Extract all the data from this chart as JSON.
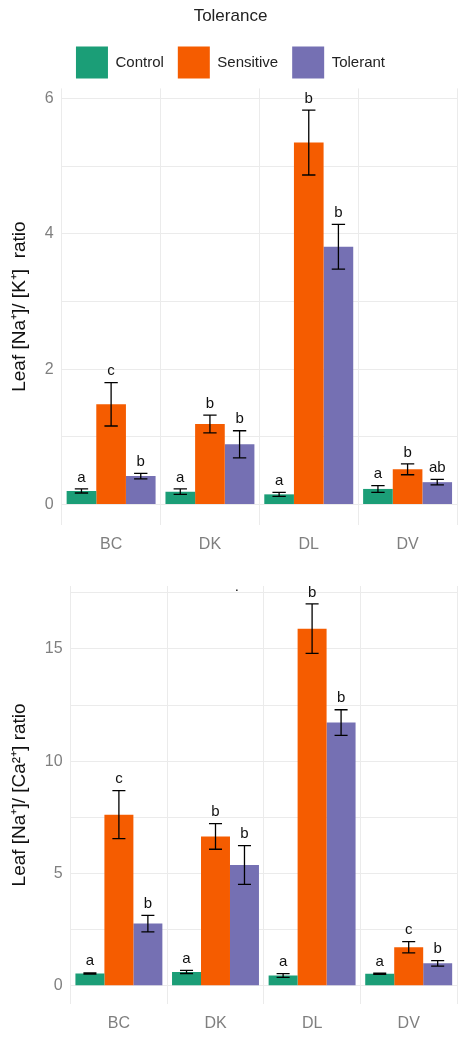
{
  "chart_data": [
    {
      "type": "bar",
      "ylabel": "Leaf [Na⁺]/ [K⁺]  ratio",
      "legend_title": "Tolerance",
      "legend": "top",
      "grid": true,
      "categories": [
        "BC",
        "DK",
        "DL",
        "DV"
      ],
      "ylim": [
        -0.3,
        6.15
      ],
      "yticks": [
        0,
        {
          "value": 1,
          "label": null
        },
        2,
        {
          "value": 3,
          "label": null
        },
        4,
        {
          "value": 5,
          "label": null
        },
        6
      ],
      "series": [
        {
          "name": "Control",
          "color": "#1b9e77",
          "values": [
            0.2,
            0.19,
            0.15,
            0.23
          ],
          "errors": [
            0.03,
            0.04,
            0.03,
            0.05
          ],
          "value_labels": [
            "a",
            "a",
            "a",
            "a"
          ]
        },
        {
          "name": "Sensitive",
          "color": "#f55c00",
          "values": [
            1.48,
            1.19,
            5.35,
            0.52
          ],
          "errors": [
            0.32,
            0.13,
            0.48,
            0.08
          ],
          "value_labels": [
            "c",
            "b",
            "b",
            "b"
          ]
        },
        {
          "name": "Tolerant",
          "color": "#7570b3",
          "values": [
            0.42,
            0.89,
            3.81,
            0.33
          ],
          "errors": [
            0.04,
            0.2,
            0.33,
            0.04
          ],
          "value_labels": [
            "b",
            "b",
            "b",
            "ab"
          ]
        }
      ]
    },
    {
      "type": "bar",
      "ylabel": "Leaf [Na⁺]/ [Ca²⁺] ratio",
      "grid": true,
      "categories": [
        "BC",
        "DK",
        "DL",
        "DV"
      ],
      "ylim": [
        -0.8,
        17.8
      ],
      "yticks": [
        0,
        {
          "value": 2.5,
          "label": null
        },
        5,
        {
          "value": 7.5,
          "label": null
        },
        10,
        {
          "value": 12.5,
          "label": null
        },
        15,
        {
          "value": 17.5,
          "label": null
        }
      ],
      "annotations": [
        "."
      ],
      "series": [
        {
          "color": "#1b9e77",
          "values": [
            0.55,
            0.62,
            0.46,
            0.54
          ],
          "errors": [
            0.03,
            0.07,
            0.08,
            0.03
          ],
          "value_labels": [
            "a",
            "a",
            "a",
            "a"
          ]
        },
        {
          "color": "#f55c00",
          "values": [
            7.62,
            6.65,
            15.9,
            1.72
          ],
          "errors": [
            1.07,
            0.57,
            1.1,
            0.25
          ],
          "value_labels": [
            "c",
            "b",
            "b",
            "c"
          ]
        },
        {
          "color": "#7570b3",
          "values": [
            2.77,
            5.38,
            11.72,
            1.0
          ],
          "errors": [
            0.37,
            0.86,
            0.57,
            0.12
          ],
          "value_labels": [
            "b",
            "b",
            "b",
            "b"
          ]
        }
      ]
    }
  ]
}
